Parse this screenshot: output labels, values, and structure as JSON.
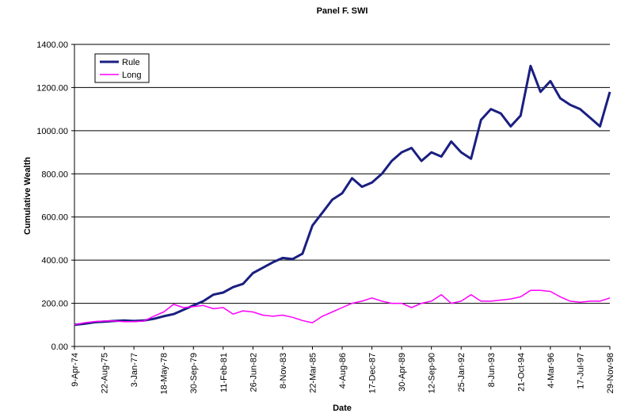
{
  "chart_data": {
    "type": "line",
    "title": "Panel F. SWI",
    "x_label": "Date",
    "y_label": "Cumulative Wealth",
    "categories": [
      "9-Apr-74",
      null,
      null,
      "22-Aug-75",
      null,
      null,
      "3-Jan-77",
      null,
      null,
      "18-May-78",
      null,
      null,
      "30-Sep-79",
      null,
      null,
      "11-Feb-81",
      null,
      null,
      "26-Jun-82",
      null,
      null,
      "8-Nov-83",
      null,
      null,
      "22-Mar-85",
      null,
      null,
      "4-Aug-86",
      null,
      null,
      "17-Dec-87",
      null,
      null,
      "30-Apr-89",
      null,
      null,
      "12-Sep-90",
      null,
      null,
      "25-Jan-92",
      null,
      null,
      "8-Jun-93",
      null,
      null,
      "21-Oct-94",
      null,
      null,
      "4-Mar-96",
      null,
      null,
      "17-Jul-97",
      null,
      null,
      "29-Nov-98"
    ],
    "series": [
      {
        "name": "Rule",
        "color": "#1a1f80",
        "values": [
          100,
          105,
          112,
          115,
          118,
          120,
          118,
          120,
          128,
          140,
          150,
          170,
          190,
          210,
          240,
          250,
          275,
          290,
          340,
          365,
          390,
          410,
          405,
          430,
          560,
          620,
          680,
          710,
          780,
          740,
          760,
          800,
          860,
          900,
          920,
          860,
          900,
          880,
          950,
          900,
          870,
          1050,
          1100,
          1080,
          1020,
          1070,
          1300,
          1180,
          1230,
          1150,
          1120,
          1100,
          1060,
          1020,
          1180
        ]
      },
      {
        "name": "Long",
        "color": "#ff00ff",
        "values": [
          100,
          110,
          115,
          118,
          118,
          115,
          115,
          118,
          140,
          160,
          195,
          180,
          185,
          190,
          175,
          180,
          150,
          165,
          160,
          145,
          140,
          145,
          135,
          120,
          110,
          140,
          160,
          180,
          200,
          210,
          225,
          210,
          200,
          200,
          180,
          200,
          210,
          240,
          200,
          210,
          240,
          210,
          210,
          215,
          220,
          230,
          260,
          260,
          255,
          230,
          210,
          205,
          210,
          210,
          225
        ]
      }
    ],
    "ylim": [
      0,
      1400
    ],
    "yticks": [
      {
        "value": 0,
        "label": "0.00"
      },
      {
        "value": 200,
        "label": "200.00"
      },
      {
        "value": 400,
        "label": "400.00"
      },
      {
        "value": 600,
        "label": "600.00"
      },
      {
        "value": 800,
        "label": "800.00"
      },
      {
        "value": 1000,
        "label": "1000.00"
      },
      {
        "value": 1200,
        "label": "1200.00"
      },
      {
        "value": 1400,
        "label": "1400.00"
      }
    ],
    "grid": true,
    "legend": "upper-left"
  }
}
